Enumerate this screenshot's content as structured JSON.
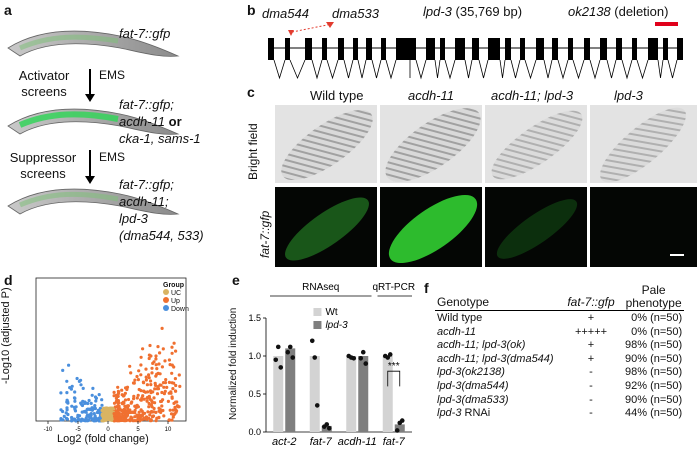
{
  "panels": {
    "a": {
      "label": "a",
      "strain_1": "fat-7::gfp",
      "screen_1": {
        "line1": "Activator",
        "line2": "screens"
      },
      "mutagen": "EMS",
      "strain_2": {
        "line1": "fat-7::gfp;",
        "line2a": "acdh-11",
        "line2b": " or",
        "line3": "cka-1, sams-1"
      },
      "screen_2": {
        "line1": "Suppressor",
        "line2": "screens"
      },
      "strain_3": {
        "line1": "fat-7::gfp;",
        "line2": "acdh-11;",
        "line3": "lpd-3",
        "line4": "(dma544, 533)"
      }
    },
    "b": {
      "label": "b",
      "allele_1": "dma544",
      "allele_2": "dma533",
      "gene": "lpd-3",
      "gene_size": " (35,769 bp)",
      "deletion_allele": "ok2138",
      "deletion_note": " (deletion)",
      "colors": {
        "marker": "#e23b2e",
        "deletion": "#e0001b"
      }
    },
    "c": {
      "label": "c",
      "columns": [
        "Wild type",
        "acdh-11",
        "acdh-11; lpd-3",
        "lpd-3"
      ],
      "rows": [
        "Bright field",
        "fat-7::gfp"
      ]
    },
    "d": {
      "label": "d",
      "xlabel": "Log2 (fold change)",
      "ylabel": "-Log10 (adjusted P)",
      "legend_title": "Group",
      "legend_items": [
        {
          "name": "UC",
          "color": "#d9b463"
        },
        {
          "name": "Up",
          "color": "#f07030"
        },
        {
          "name": "Down",
          "color": "#4a8fdd"
        }
      ],
      "x_ticks": [
        "-10",
        "-5",
        "0",
        "5",
        "10"
      ]
    },
    "e": {
      "label": "e",
      "group_rnaseq": "RNAseq",
      "group_qrtpcr": "qRT-PCR",
      "legend": [
        "Wt",
        "lpd-3"
      ],
      "significance": "***",
      "colors": {
        "wt": "#d3d3d3",
        "lpd3": "#7f7f7f"
      }
    },
    "f": {
      "label": "f",
      "headers": {
        "genotype": "Genotype",
        "reporter": "fat-7::gfp",
        "pale": "Pale",
        "pale2": "phenotype"
      },
      "rows": [
        {
          "genotype": "Wild type",
          "italic": false,
          "gfp": "+",
          "pale": "0% (n=50)"
        },
        {
          "genotype": "acdh-11",
          "italic": true,
          "gfp": "+++++",
          "pale": "0% (n=50)"
        },
        {
          "genotype": "acdh-11; lpd-3(ok)",
          "italic": true,
          "gfp": "+",
          "pale": "98% (n=50)"
        },
        {
          "genotype": "acdh-11; lpd-3(dma544)",
          "italic": true,
          "gfp": "+",
          "pale": "90% (n=50)"
        },
        {
          "genotype": "lpd-3(ok2138)",
          "italic": true,
          "gfp": "-",
          "pale": "98% (n=50)"
        },
        {
          "genotype": "lpd-3(dma544)",
          "italic": true,
          "gfp": "-",
          "pale": "92% (n=50)"
        },
        {
          "genotype": "lpd-3(dma533)",
          "italic": true,
          "gfp": "-",
          "pale": "90% (n=50)"
        },
        {
          "genotype": "lpd-3",
          "italic": true,
          "suffix": " RNAi",
          "gfp": "-",
          "pale": "44% (n=50)"
        }
      ]
    }
  },
  "chart_data": [
    {
      "type": "scatter",
      "title": "",
      "xlabel": "Log2 (fold change)",
      "ylabel": "-Log10 (adjusted P)",
      "x_ticks": [
        -10,
        -5,
        0,
        5,
        10
      ],
      "xlim": [
        -12,
        13
      ],
      "series": [
        {
          "name": "UC",
          "description": "non-significant genes near x=0"
        },
        {
          "name": "Up",
          "description": "up-regulated genes, x from ~1 to ~12"
        },
        {
          "name": "Down",
          "description": "down-regulated genes, x from ~-8 to ~-1"
        }
      ]
    },
    {
      "type": "bar",
      "xlabel": "",
      "ylabel": "Normalized fold induction",
      "categories": [
        "act-2",
        "fat-7",
        "acdh-11",
        "fat-7"
      ],
      "ylim": [
        0,
        1.5
      ],
      "y_ticks": [
        "0.0",
        "0.5",
        "1.0",
        "1.5"
      ],
      "series": [
        {
          "name": "Wt",
          "values": [
            1.0,
            1.0,
            1.0,
            1.0
          ],
          "points": [
            [
              0.95,
              1.12,
              0.85
            ],
            [
              1.2,
              0.98,
              0.35
            ],
            [
              1.0,
              0.98,
              0.97
            ],
            [
              1.0,
              0.98,
              1.02
            ]
          ]
        },
        {
          "name": "lpd-3",
          "values": [
            1.1,
            0.08,
            1.0,
            0.1
          ],
          "points": [
            [
              1.05,
              1.12,
              0.98
            ],
            [
              0.07,
              0.1,
              0.05
            ],
            [
              0.97,
              1.05,
              0.9
            ],
            [
              0.02,
              0.12,
              0.15
            ]
          ]
        }
      ]
    }
  ]
}
